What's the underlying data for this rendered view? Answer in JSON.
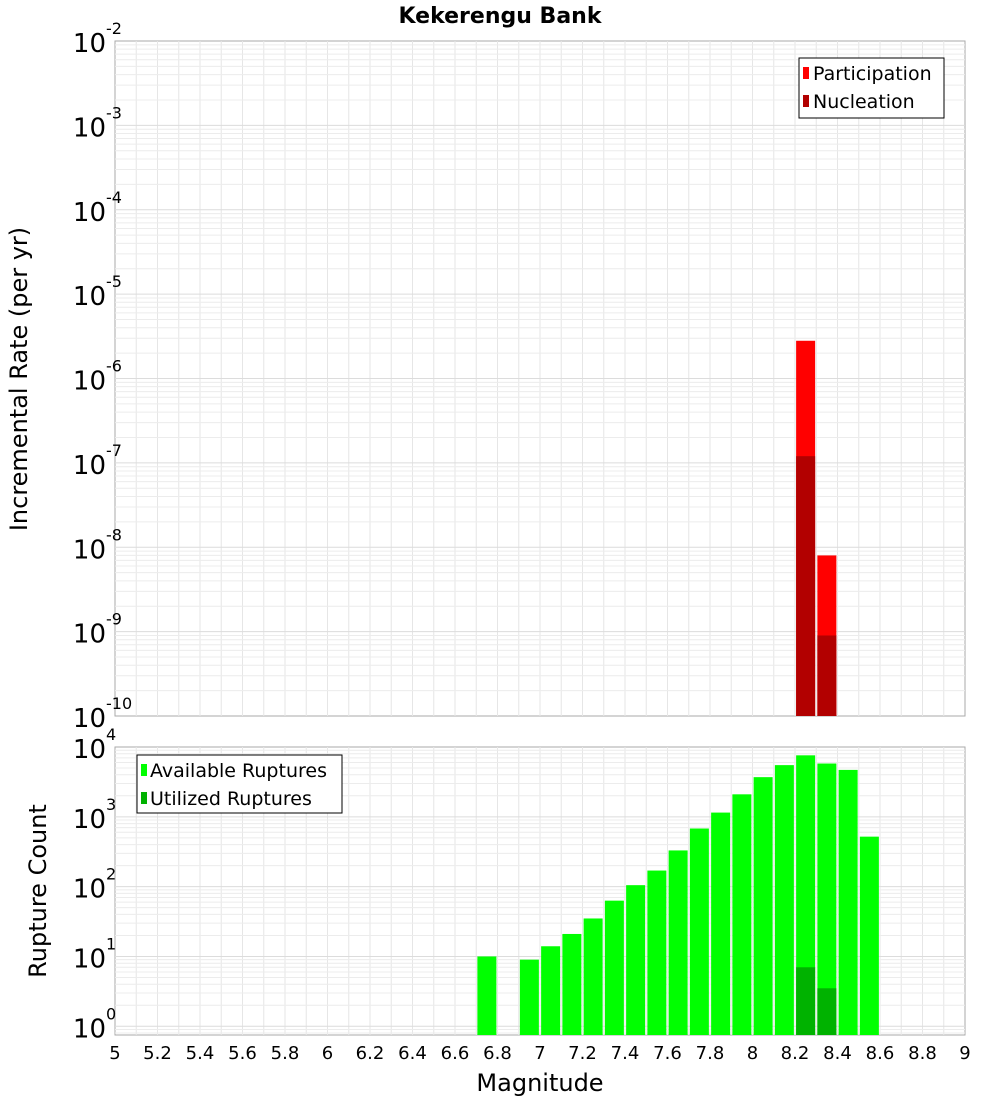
{
  "chart_data": [
    {
      "type": "bar",
      "title": "Kekerengu Bank",
      "xlabel": "",
      "ylabel": "Incremental Rate (per yr)",
      "yscale": "log",
      "xlim": [
        5,
        9
      ],
      "ylim": [
        1e-10,
        0.01
      ],
      "yticks": [
        {
          "base": "10",
          "exp": "-10",
          "value": 1e-10
        },
        {
          "base": "10",
          "exp": "-9",
          "value": 1e-09
        },
        {
          "base": "10",
          "exp": "-8",
          "value": 1e-08
        },
        {
          "base": "10",
          "exp": "-7",
          "value": 1e-07
        },
        {
          "base": "10",
          "exp": "-6",
          "value": 1e-06
        },
        {
          "base": "10",
          "exp": "-5",
          "value": 1e-05
        },
        {
          "base": "10",
          "exp": "-4",
          "value": 0.0001
        },
        {
          "base": "10",
          "exp": "-3",
          "value": 0.001
        },
        {
          "base": "10",
          "exp": "-2",
          "value": 0.01
        }
      ],
      "grid": true,
      "legend_position": "top-right",
      "series": [
        {
          "name": "Participation",
          "color": "#ff0000",
          "x": [
            8.25,
            8.35
          ],
          "values": [
            2.8e-06,
            8e-09
          ]
        },
        {
          "name": "Nucleation",
          "color": "#b20000",
          "x": [
            8.25,
            8.35
          ],
          "values": [
            1.2e-07,
            9e-10
          ]
        }
      ]
    },
    {
      "type": "bar",
      "title": "",
      "xlabel": "Magnitude",
      "ylabel": "Rupture Count",
      "yscale": "log",
      "xlim": [
        5,
        9
      ],
      "ylim": [
        0.75,
        10000
      ],
      "yticks": [
        {
          "base": "10",
          "exp": "0",
          "value": 1
        },
        {
          "base": "10",
          "exp": "1",
          "value": 10
        },
        {
          "base": "10",
          "exp": "2",
          "value": 100
        },
        {
          "base": "10",
          "exp": "3",
          "value": 1000
        },
        {
          "base": "10",
          "exp": "4",
          "value": 10000
        }
      ],
      "xticks": [
        "5",
        "5.2",
        "5.4",
        "5.6",
        "5.8",
        "6",
        "6.2",
        "6.4",
        "6.6",
        "6.8",
        "7",
        "7.2",
        "7.4",
        "7.6",
        "7.8",
        "8",
        "8.2",
        "8.4",
        "8.6",
        "8.8",
        "9"
      ],
      "grid": true,
      "legend_position": "top-left",
      "series": [
        {
          "name": "Available Ruptures",
          "color": "#00ff00",
          "x": [
            6.75,
            6.95,
            7.05,
            7.15,
            7.25,
            7.35,
            7.45,
            7.55,
            7.65,
            7.75,
            7.85,
            7.95,
            8.05,
            8.15,
            8.25,
            8.35,
            8.45,
            8.55
          ],
          "values": [
            10,
            9,
            14,
            21,
            35,
            63,
            105,
            170,
            330,
            680,
            1150,
            2100,
            3700,
            5500,
            7600,
            5800,
            4700,
            520
          ]
        },
        {
          "name": "Utilized Ruptures",
          "color": "#00b200",
          "x": [
            8.25,
            8.35
          ],
          "values": [
            7,
            3.5
          ]
        }
      ]
    }
  ]
}
